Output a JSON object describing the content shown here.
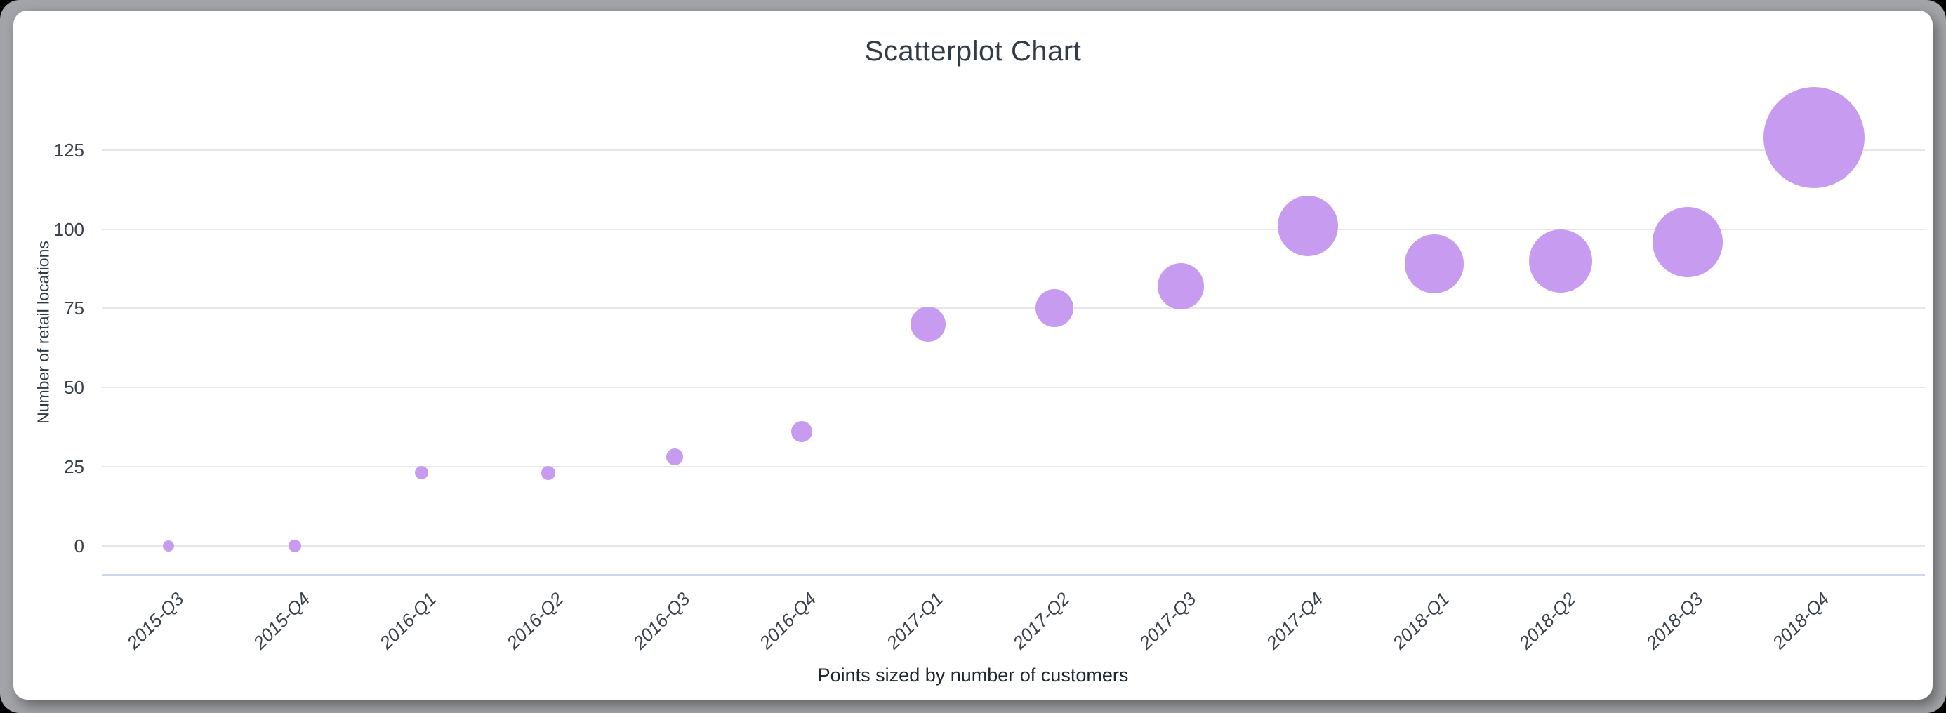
{
  "title": "Scatterplot Chart",
  "caption": "Points sized by number of customers",
  "y_axis": {
    "title": "Number of retail locations",
    "ticks": [
      0,
      25,
      50,
      75,
      100,
      125
    ]
  },
  "chart_data": {
    "type": "scatter",
    "title": "Scatterplot Chart",
    "xlabel": "Points sized by number of customers",
    "ylabel": "Number of retail locations",
    "categories": [
      "2015-Q3",
      "2015-Q4",
      "2016-Q1",
      "2016-Q2",
      "2016-Q3",
      "2016-Q4",
      "2017-Q1",
      "2017-Q2",
      "2017-Q3",
      "2017-Q4",
      "2018-Q1",
      "2018-Q2",
      "2018-Q3",
      "2018-Q4"
    ],
    "series": [
      {
        "name": "Number of retail locations",
        "values": [
          0,
          0,
          23,
          23,
          28,
          36,
          70,
          75,
          82,
          101,
          89,
          90,
          96,
          129
        ],
        "point_radius_px": [
          8,
          9,
          9.5,
          10,
          12,
          15,
          25,
          27,
          33,
          43,
          42,
          45,
          50,
          72
        ]
      }
    ],
    "y_ticks": [
      0,
      25,
      50,
      75,
      100,
      125
    ],
    "ylim": [
      0,
      135
    ],
    "grid": true,
    "legend": "none",
    "size_note": "Points sized by number of customers",
    "point_color": "#c79bef"
  },
  "colors": {
    "point": "#c79bef",
    "gridline": "#e6e6e6",
    "baseline": "#ccd6ee",
    "title_text": "#333b44",
    "tick_text": "#3a4149",
    "caption_text": "#20262e",
    "frame": "#a2a4a7",
    "card": "#ffffff",
    "page_background": "#000000"
  }
}
